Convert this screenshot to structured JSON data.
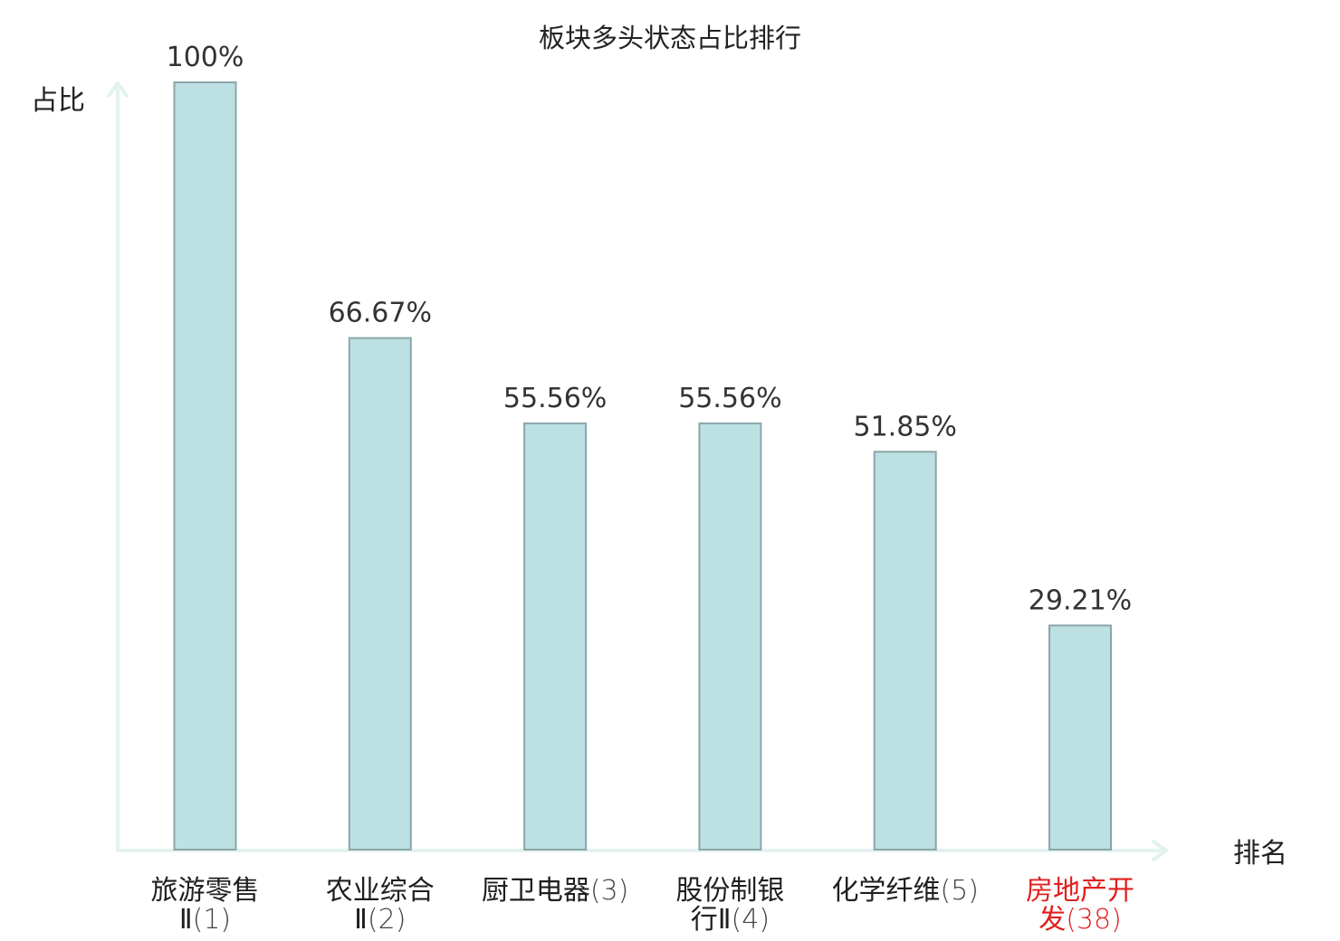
{
  "chart_data": {
    "type": "bar",
    "title": "板块多头状态占比排行",
    "ylabel": "占比",
    "xlabel": "排名",
    "ylim": [
      0,
      100
    ],
    "grid": false,
    "legend": "none",
    "categories": [
      {
        "name_lines": [
          "旅游零售",
          "Ⅱ"
        ],
        "rank": "(1)",
        "highlight": false
      },
      {
        "name_lines": [
          "农业综合",
          "Ⅱ"
        ],
        "rank": "(2)",
        "highlight": false
      },
      {
        "name_lines": [
          "厨卫电器"
        ],
        "rank": "(3)",
        "highlight": false
      },
      {
        "name_lines": [
          "股份制银",
          "行Ⅱ"
        ],
        "rank": "(4)",
        "highlight": false
      },
      {
        "name_lines": [
          "化学纤维"
        ],
        "rank": "(5)",
        "highlight": false
      },
      {
        "name_lines": [
          "房地产开",
          "发"
        ],
        "rank": "(38)",
        "highlight": true
      }
    ],
    "values": [
      100,
      66.67,
      55.56,
      55.56,
      51.85,
      29.21
    ],
    "value_labels": [
      "100%",
      "66.67%",
      "55.56%",
      "55.56%",
      "51.85%",
      "29.21%"
    ]
  },
  "colors": {
    "bar_fill": "#bde0e3",
    "bar_stroke": "#8aa6aa",
    "axis": "#e3f2ef",
    "highlight_text": "#e02020"
  }
}
